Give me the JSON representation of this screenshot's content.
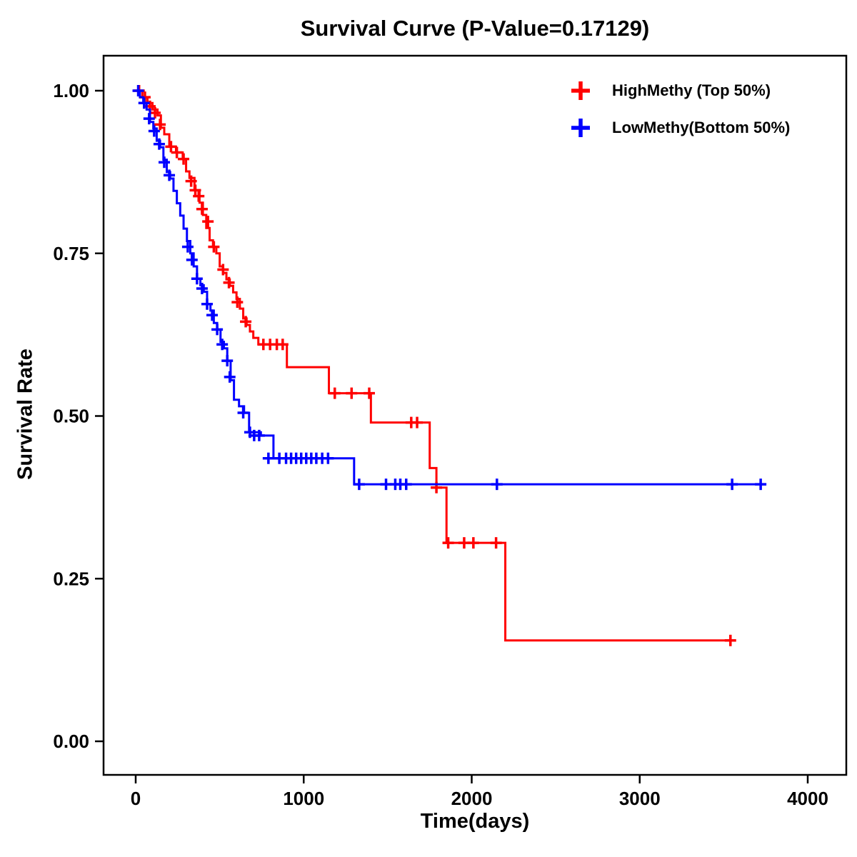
{
  "chart_data": {
    "type": "line",
    "subtype": "kaplan-meier-step",
    "title": "Survival Curve (P-Value=0.17129)",
    "xlabel": "Time(days)",
    "ylabel": "Survival Rate",
    "xlim": [
      0,
      4000
    ],
    "ylim": [
      0.0,
      1.0
    ],
    "xticks": [
      0,
      1000,
      2000,
      3000,
      4000
    ],
    "xtick_labels": [
      "0",
      "1000",
      "2000",
      "3000",
      "4000"
    ],
    "yticks": [
      0.0,
      0.25,
      0.5,
      0.75,
      1.0
    ],
    "ytick_labels": [
      "0.00",
      "0.25",
      "0.50",
      "0.75",
      "1.00"
    ],
    "grid": false,
    "legend_position": "top-right",
    "series": [
      {
        "name": "HighMethy (Top 50%)",
        "color": "#FF0000",
        "steps": [
          [
            0,
            1.0
          ],
          [
            40,
            0.99
          ],
          [
            70,
            0.981
          ],
          [
            100,
            0.971
          ],
          [
            130,
            0.962
          ],
          [
            150,
            0.943
          ],
          [
            170,
            0.933
          ],
          [
            200,
            0.914
          ],
          [
            240,
            0.905
          ],
          [
            280,
            0.895
          ],
          [
            300,
            0.876
          ],
          [
            320,
            0.866
          ],
          [
            350,
            0.847
          ],
          [
            380,
            0.828
          ],
          [
            400,
            0.809
          ],
          [
            420,
            0.789
          ],
          [
            440,
            0.77
          ],
          [
            460,
            0.76
          ],
          [
            480,
            0.75
          ],
          [
            500,
            0.73
          ],
          [
            520,
            0.72
          ],
          [
            540,
            0.71
          ],
          [
            560,
            0.7
          ],
          [
            580,
            0.69
          ],
          [
            600,
            0.68
          ],
          [
            620,
            0.665
          ],
          [
            640,
            0.65
          ],
          [
            660,
            0.64
          ],
          [
            680,
            0.63
          ],
          [
            700,
            0.62
          ],
          [
            730,
            0.61
          ],
          [
            900,
            0.575
          ],
          [
            1150,
            0.535
          ],
          [
            1400,
            0.49
          ],
          [
            1750,
            0.42
          ],
          [
            1790,
            0.39
          ],
          [
            1850,
            0.305
          ],
          [
            2200,
            0.155
          ],
          [
            3560,
            0.155
          ]
        ],
        "censor_marks": [
          [
            20,
            1.0
          ],
          [
            55,
            0.99
          ],
          [
            85,
            0.976
          ],
          [
            115,
            0.966
          ],
          [
            145,
            0.948
          ],
          [
            210,
            0.914
          ],
          [
            245,
            0.905
          ],
          [
            285,
            0.895
          ],
          [
            330,
            0.861
          ],
          [
            355,
            0.847
          ],
          [
            375,
            0.838
          ],
          [
            395,
            0.818
          ],
          [
            430,
            0.799
          ],
          [
            465,
            0.76
          ],
          [
            520,
            0.725
          ],
          [
            555,
            0.705
          ],
          [
            605,
            0.675
          ],
          [
            655,
            0.645
          ],
          [
            760,
            0.61
          ],
          [
            800,
            0.61
          ],
          [
            840,
            0.61
          ],
          [
            875,
            0.61
          ],
          [
            1185,
            0.535
          ],
          [
            1285,
            0.535
          ],
          [
            1390,
            0.535
          ],
          [
            1640,
            0.49
          ],
          [
            1675,
            0.49
          ],
          [
            1790,
            0.39
          ],
          [
            1860,
            0.305
          ],
          [
            1955,
            0.305
          ],
          [
            2010,
            0.305
          ],
          [
            2145,
            0.305
          ],
          [
            3540,
            0.155
          ]
        ]
      },
      {
        "name": "LowMethy(Bottom 50%)",
        "color": "#0000FF",
        "steps": [
          [
            0,
            1.0
          ],
          [
            25,
            0.99
          ],
          [
            45,
            0.981
          ],
          [
            65,
            0.971
          ],
          [
            85,
            0.952
          ],
          [
            105,
            0.942
          ],
          [
            125,
            0.923
          ],
          [
            145,
            0.913
          ],
          [
            165,
            0.894
          ],
          [
            185,
            0.875
          ],
          [
            205,
            0.865
          ],
          [
            225,
            0.846
          ],
          [
            245,
            0.827
          ],
          [
            265,
            0.808
          ],
          [
            285,
            0.788
          ],
          [
            305,
            0.769
          ],
          [
            325,
            0.75
          ],
          [
            345,
            0.73
          ],
          [
            365,
            0.711
          ],
          [
            385,
            0.701
          ],
          [
            405,
            0.691
          ],
          [
            425,
            0.672
          ],
          [
            445,
            0.662
          ],
          [
            465,
            0.643
          ],
          [
            485,
            0.633
          ],
          [
            505,
            0.614
          ],
          [
            525,
            0.604
          ],
          [
            545,
            0.585
          ],
          [
            565,
            0.555
          ],
          [
            585,
            0.525
          ],
          [
            615,
            0.515
          ],
          [
            645,
            0.505
          ],
          [
            675,
            0.475
          ],
          [
            745,
            0.47
          ],
          [
            820,
            0.435
          ],
          [
            1300,
            0.395
          ],
          [
            3750,
            0.395
          ]
        ],
        "censor_marks": [
          [
            15,
            1.0
          ],
          [
            50,
            0.981
          ],
          [
            80,
            0.957
          ],
          [
            110,
            0.938
          ],
          [
            140,
            0.918
          ],
          [
            170,
            0.89
          ],
          [
            200,
            0.87
          ],
          [
            310,
            0.76
          ],
          [
            335,
            0.74
          ],
          [
            365,
            0.711
          ],
          [
            395,
            0.696
          ],
          [
            425,
            0.672
          ],
          [
            455,
            0.655
          ],
          [
            485,
            0.633
          ],
          [
            515,
            0.61
          ],
          [
            545,
            0.585
          ],
          [
            560,
            0.56
          ],
          [
            640,
            0.505
          ],
          [
            680,
            0.475
          ],
          [
            705,
            0.47
          ],
          [
            735,
            0.47
          ],
          [
            790,
            0.435
          ],
          [
            855,
            0.435
          ],
          [
            895,
            0.435
          ],
          [
            925,
            0.435
          ],
          [
            955,
            0.435
          ],
          [
            985,
            0.435
          ],
          [
            1015,
            0.435
          ],
          [
            1045,
            0.435
          ],
          [
            1075,
            0.435
          ],
          [
            1110,
            0.435
          ],
          [
            1145,
            0.435
          ],
          [
            1330,
            0.395
          ],
          [
            1490,
            0.395
          ],
          [
            1545,
            0.395
          ],
          [
            1575,
            0.395
          ],
          [
            1610,
            0.395
          ],
          [
            2150,
            0.395
          ],
          [
            3550,
            0.395
          ],
          [
            3720,
            0.395
          ]
        ]
      }
    ]
  }
}
